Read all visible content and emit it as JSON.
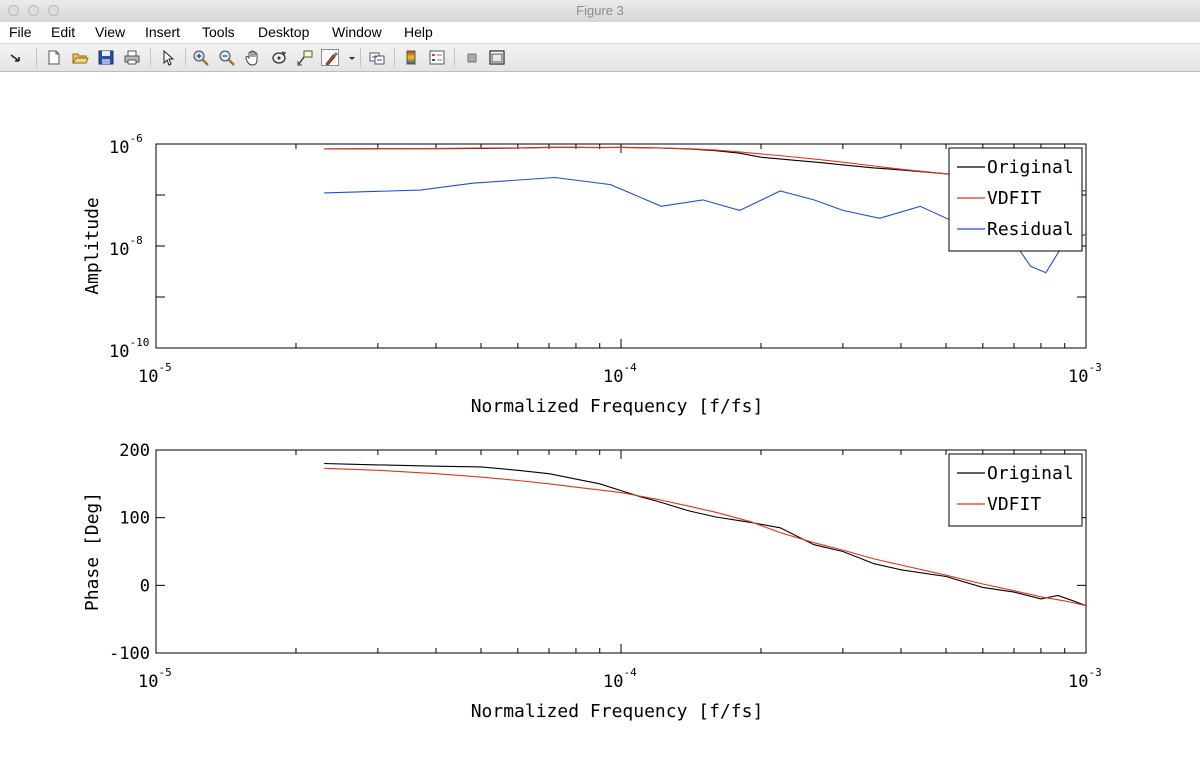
{
  "window": {
    "title": "Figure 3"
  },
  "menu": {
    "file": "File",
    "edit": "Edit",
    "view": "View",
    "insert": "Insert",
    "tools": "Tools",
    "desktop": "Desktop",
    "window": "Window",
    "help": "Help"
  },
  "toolbar": {
    "icons": [
      "dock-arrow-icon",
      "new-figure-icon",
      "open-file-icon",
      "save-icon",
      "print-icon",
      "edit-plot-arrow-icon",
      "zoom-in-icon",
      "zoom-out-icon",
      "pan-hand-icon",
      "rotate-3d-icon",
      "data-cursor-icon",
      "brush-icon",
      "brush-dropdown-icon",
      "link-plot-icon",
      "colorbar-icon",
      "legend-icon",
      "hide-plot-tools-icon",
      "show-plot-tools-icon"
    ]
  },
  "colors": {
    "original": "#000000",
    "vdfit": "#e0361c",
    "residual": "#1f4fd6"
  },
  "chart_data": [
    {
      "type": "line",
      "xscale": "log",
      "yscale": "log",
      "xlabel": "Normalized Frequency [f/fs]",
      "ylabel": "Amplitude",
      "xlim": [
        1e-05,
        0.001
      ],
      "ylim": [
        1e-10,
        1e-06
      ],
      "xticks": [
        {
          "base": "10",
          "exp": "-5"
        },
        {
          "base": "10",
          "exp": "-4"
        },
        {
          "base": "10",
          "exp": "-3"
        }
      ],
      "yticks": [
        {
          "base": "10",
          "exp": "-10",
          "value": 1e-10
        },
        {
          "base": "10",
          "exp": "-8",
          "value": 1e-08
        },
        {
          "base": "10",
          "exp": "-6",
          "value": 1e-06
        }
      ],
      "legend_position": "right",
      "series": [
        {
          "name": "Original",
          "color": "#000000",
          "x": [
            2.3e-05,
            3e-05,
            4e-05,
            5e-05,
            6e-05,
            7e-05,
            8e-05,
            9e-05,
            0.0001,
            0.00012,
            0.00014,
            0.00016,
            0.00018,
            0.0002,
            0.00023,
            0.00027,
            0.0003,
            0.00035,
            0.0004,
            0.0005,
            0.0006,
            0.0007,
            0.0008,
            0.0009,
            0.001
          ],
          "values": [
            8e-07,
            8.1e-07,
            8.1e-07,
            8.2e-07,
            8.3e-07,
            8.6e-07,
            8.6e-07,
            8.5e-07,
            8.6e-07,
            8.4e-07,
            8e-07,
            7.4e-07,
            6.6e-07,
            5.5e-07,
            4.9e-07,
            4.3e-07,
            3.9e-07,
            3.4e-07,
            3.1e-07,
            2.6e-07,
            2.2e-07,
            1.85e-07,
            1.55e-07,
            1.35e-07,
            1.2e-07
          ]
        },
        {
          "name": "VDFIT",
          "color": "#e0361c",
          "x": [
            2.3e-05,
            3e-05,
            4e-05,
            5e-05,
            6e-05,
            7e-05,
            8e-05,
            9e-05,
            0.0001,
            0.00012,
            0.00014,
            0.00016,
            0.00018,
            0.0002,
            0.00023,
            0.00027,
            0.0003,
            0.00035,
            0.0004,
            0.0005,
            0.0006,
            0.0007,
            0.0008,
            0.0009,
            0.001
          ],
          "values": [
            8e-07,
            8.1e-07,
            8.2e-07,
            8.3e-07,
            8.4e-07,
            8.5e-07,
            8.5e-07,
            8.5e-07,
            8.5e-07,
            8.4e-07,
            8.1e-07,
            7.6e-07,
            7e-07,
            6.4e-07,
            5.7e-07,
            4.9e-07,
            4.4e-07,
            3.7e-07,
            3.2e-07,
            2.6e-07,
            2.2e-07,
            1.85e-07,
            1.55e-07,
            1.35e-07,
            1.2e-07
          ]
        },
        {
          "name": "Residual",
          "color": "#1f4fd6",
          "x": [
            2.3e-05,
            3.7e-05,
            4.8e-05,
            7.2e-05,
            9.5e-05,
            0.000122,
            0.00015,
            0.00018,
            0.00022,
            0.00026,
            0.0003,
            0.00036,
            0.00044,
            0.00052,
            0.0006,
            0.00065,
            0.0007,
            0.00076,
            0.00082,
            0.0009,
            0.001
          ],
          "values": [
            1.1e-07,
            1.25e-07,
            1.7e-07,
            2.2e-07,
            1.6e-07,
            6e-08,
            8e-08,
            5e-08,
            1.2e-07,
            8e-08,
            5e-08,
            3.5e-08,
            6e-08,
            3e-08,
            3.8e-08,
            2.5e-08,
            1.2e-08,
            4e-09,
            3e-09,
            1.2e-08,
            1.7e-08
          ]
        }
      ]
    },
    {
      "type": "line",
      "xscale": "log",
      "yscale": "linear",
      "xlabel": "Normalized Frequency [f/fs]",
      "ylabel": "Phase [Deg]",
      "xlim": [
        1e-05,
        0.001
      ],
      "ylim": [
        -100,
        200
      ],
      "xticks": [
        {
          "base": "10",
          "exp": "-5"
        },
        {
          "base": "10",
          "exp": "-4"
        },
        {
          "base": "10",
          "exp": "-3"
        }
      ],
      "yticks": [
        {
          "label": "-100",
          "value": -100
        },
        {
          "label": "0",
          "value": 0
        },
        {
          "label": "100",
          "value": 100
        },
        {
          "label": "200",
          "value": 200
        }
      ],
      "legend_position": "top-right",
      "series": [
        {
          "name": "Original",
          "color": "#000000",
          "x": [
            2.3e-05,
            2.6e-05,
            3e-05,
            3.5e-05,
            4e-05,
            5e-05,
            6e-05,
            7e-05,
            8e-05,
            9e-05,
            0.0001,
            0.00011,
            0.00012,
            0.00014,
            0.00016,
            0.00019,
            0.00022,
            0.00026,
            0.0003,
            0.00035,
            0.0004,
            0.0005,
            0.0006,
            0.0007,
            0.0008,
            0.00087,
            0.00093,
            0.001
          ],
          "values": [
            180,
            179,
            178,
            177,
            176,
            175,
            170,
            165,
            157,
            150,
            140,
            131,
            124,
            110,
            101,
            93,
            85,
            60,
            50,
            32,
            23,
            13,
            -3,
            -10,
            -20,
            -15,
            -22,
            -30
          ]
        },
        {
          "name": "VDFIT",
          "color": "#e0361c",
          "x": [
            2.3e-05,
            3e-05,
            4e-05,
            5e-05,
            6e-05,
            7e-05,
            8e-05,
            9e-05,
            0.0001,
            0.00012,
            0.00014,
            0.00016,
            0.00019,
            0.00022,
            0.00026,
            0.0003,
            0.00035,
            0.0004,
            0.0005,
            0.0006,
            0.0007,
            0.0008,
            0.0009,
            0.001
          ],
          "values": [
            173,
            170,
            165,
            160,
            155,
            150,
            145,
            141,
            137,
            127,
            117,
            108,
            94,
            78,
            63,
            52,
            39,
            30,
            15,
            2,
            -8,
            -17,
            -23,
            -30
          ]
        }
      ]
    }
  ]
}
